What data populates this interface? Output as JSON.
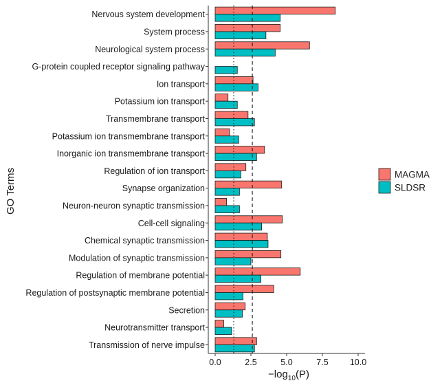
{
  "chart_data": {
    "type": "bar",
    "orientation": "horizontal",
    "ylabel": "GO Terms",
    "xlabel_prefix": "−log",
    "xlabel_sub": "10",
    "xlabel_suffix": "(P)",
    "xlim": [
      0,
      10.5
    ],
    "xticks": [
      0,
      2.5,
      5,
      7.5,
      10
    ],
    "xtick_labels": [
      "0.0",
      "2.5",
      "5.0",
      "7.5",
      "10.0"
    ],
    "grid": false,
    "legend_position": "right",
    "reference_lines": [
      {
        "x": 1.3,
        "style": "dotted"
      },
      {
        "x": 2.6,
        "style": "dashed"
      }
    ],
    "categories": [
      "Nervous system development",
      "System process",
      "Neurological system process",
      "G-protein coupled receptor signaling pathway",
      "Ion transport",
      "Potassium ion transport",
      "Transmembrane transport",
      "Potassium ion transmembrane transport",
      "Inorganic ion transmembrane transport",
      "Regulation of ion transport",
      "Synapse organization",
      "Neuron-neuron synaptic transmission",
      "Cell-cell signaling",
      "Chemical synaptic transmission",
      "Modulation of synaptic transmission",
      "Regulation of membrane potential",
      "Regulation of postsynaptic membrane potential",
      "Secretion",
      "Neurotransmitter transport",
      "Transmission of nerve impulse"
    ],
    "series": [
      {
        "name": "MAGMA",
        "color": "#F8766D",
        "values": [
          8.4,
          4.55,
          6.6,
          0.0,
          2.65,
          0.9,
          2.3,
          1.0,
          3.45,
          2.15,
          4.65,
          0.8,
          4.7,
          3.65,
          4.6,
          5.95,
          4.1,
          2.1,
          0.6,
          2.9
        ]
      },
      {
        "name": "SLDSR",
        "color": "#00BFC4",
        "values": [
          4.55,
          3.55,
          4.2,
          1.55,
          3.0,
          1.55,
          2.75,
          1.65,
          2.9,
          1.8,
          1.7,
          1.7,
          3.25,
          3.7,
          2.5,
          3.2,
          1.95,
          1.9,
          1.15,
          2.75
        ]
      }
    ]
  }
}
